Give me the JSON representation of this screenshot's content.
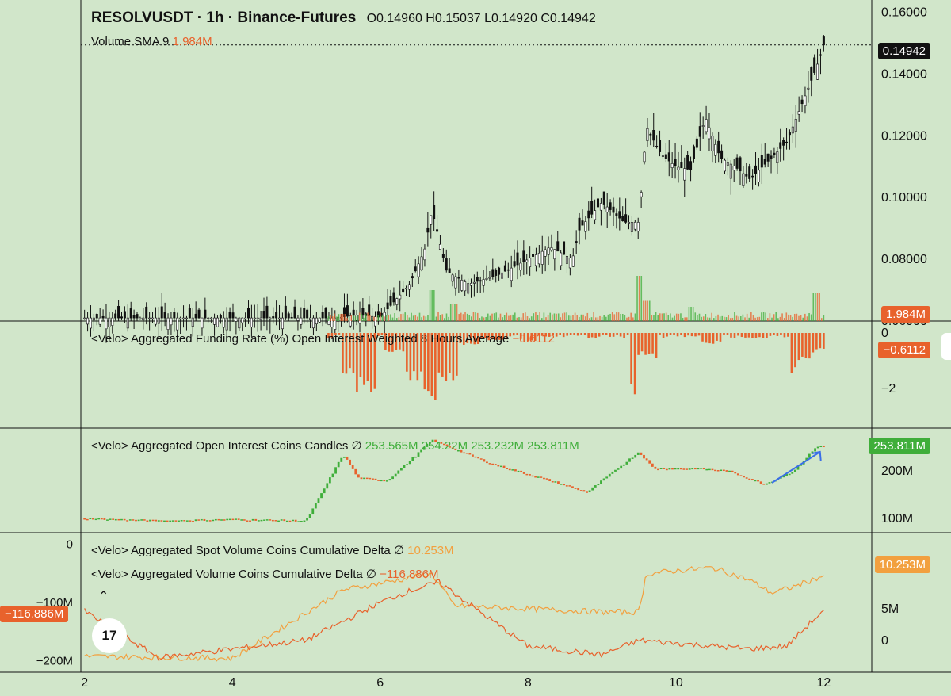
{
  "header": {
    "symbol": "RESOLVUSDT · 1h · Binance-Futures",
    "ohlc": "O0.14960  H0.15037  L0.14920  C0.14942"
  },
  "volume": {
    "label": "Volume SMA 9",
    "value": "1.984M"
  },
  "funding": {
    "label": "<Velo> Aggregated Funding Rate (%) Open Interest Weighted 8 Hours Average",
    "value": "−0.6112"
  },
  "oi": {
    "label": "<Velo> Aggregated Open Interest Coins Candles ∅",
    "o": "253.565M",
    "h": "254.22M",
    "l": "253.232M",
    "c": "253.811M"
  },
  "spot_delta": {
    "label": "<Velo> Aggregated Spot Volume Coins Cumulative Delta ∅",
    "value": "10.253M"
  },
  "vol_delta": {
    "label": "<Velo> Aggregated Volume Coins Cumulative Delta ∅",
    "value": "−116.886M"
  },
  "tags": {
    "price": "0.14942",
    "volume": "1.984M",
    "funding": "−0.6112",
    "oi": "253.811M",
    "spot": "10.253M",
    "cum": "−116.886M"
  },
  "price_axis_ticks": [
    "0.16000",
    "0.14000",
    "0.12000",
    "0.10000",
    "0.08000",
    "0.06000"
  ],
  "funding_axis_ticks": [
    "0",
    "−2"
  ],
  "oi_axis_ticks": [
    "200M",
    "100M"
  ],
  "spot_axis_ticks": [
    "5M",
    "0"
  ],
  "cum_axis_ticks": [
    "0",
    "−100M",
    "−200M"
  ],
  "x_axis_ticks": [
    "2",
    "4",
    "6",
    "8",
    "10",
    "12"
  ],
  "logo": "17",
  "colors": {
    "bg": "#d1e6ca",
    "up": "#3fae3a",
    "down": "#e8622c",
    "spot": "#f2a03f",
    "cum": "#e8622c",
    "arrow": "#3a6ee8"
  },
  "chart_data": [
    {
      "type": "candlestick",
      "title": "RESOLVUSDT · 1h · Binance-Futures",
      "x": [
        2.0,
        5.4,
        5.7,
        6.0,
        6.4,
        6.6,
        6.7,
        6.9,
        7.2,
        7.6,
        8.0,
        8.3,
        8.6,
        8.7,
        9.0,
        9.3,
        9.5,
        9.6,
        9.8,
        10.0,
        10.2,
        10.4,
        10.6,
        10.8,
        11.0,
        11.3,
        11.5,
        11.7,
        11.9,
        12.0
      ],
      "close": [
        0.061,
        0.061,
        0.062,
        0.0612,
        0.072,
        0.083,
        0.096,
        0.076,
        0.072,
        0.075,
        0.08,
        0.084,
        0.08,
        0.09,
        0.0985,
        0.092,
        0.092,
        0.123,
        0.114,
        0.11,
        0.109,
        0.126,
        0.113,
        0.11,
        0.106,
        0.113,
        0.118,
        0.13,
        0.142,
        0.1494
      ],
      "xlim": [
        1.95,
        12.65
      ],
      "ylim": [
        0.06,
        0.164
      ]
    },
    {
      "type": "bar",
      "title": "Volume SMA 9",
      "x": [
        5.5,
        6.7,
        7.0,
        9.5,
        9.6,
        10.2,
        11.9
      ],
      "values": [
        0.6,
        2.6,
        1.4,
        3.8,
        1.7,
        1.2,
        2.4
      ],
      "unit": "M"
    },
    {
      "type": "bar",
      "title": "<Velo> Aggregated Funding Rate (%) Open Interest Weighted 8 Hours Average",
      "x": [
        5.6,
        5.8,
        6.2,
        6.5,
        6.7,
        6.9,
        7.2,
        7.6,
        8.0,
        9.5,
        9.6,
        10.5,
        11.0,
        11.7,
        11.8,
        12.0
      ],
      "values": [
        -1.8,
        -2.2,
        -0.8,
        -1.7,
        -2.8,
        -1.9,
        -0.5,
        -0.3,
        -0.3,
        -2.5,
        -0.9,
        -0.4,
        -0.2,
        -1.5,
        -1.0,
        -0.6112
      ],
      "ylim": [
        -3.0,
        0.0
      ]
    },
    {
      "type": "candlestick",
      "title": "<Velo> Aggregated Open Interest Coins Candles",
      "x": [
        2.0,
        3.0,
        4.0,
        5.0,
        5.5,
        5.7,
        6.1,
        6.5,
        6.7,
        7.5,
        8.4,
        8.8,
        9.5,
        9.7,
        10.3,
        10.7,
        11.2,
        11.6,
        11.9,
        12.0
      ],
      "close": [
        100,
        95,
        98,
        95,
        235,
        185,
        180,
        235,
        265,
        215,
        175,
        155,
        240,
        205,
        205,
        200,
        172,
        200,
        250,
        253.811
      ],
      "unit": "M",
      "ylim": [
        70,
        290
      ]
    },
    {
      "type": "line",
      "title": "<Velo> Aggregated Spot Volume Coins Cumulative Delta",
      "x": [
        2.0,
        4.0,
        5.5,
        6.7,
        7.0,
        8.0,
        9.0,
        9.5,
        9.6,
        10.0,
        10.5,
        11.0,
        11.3,
        11.6,
        12.0
      ],
      "values": [
        -2.5,
        -2.8,
        8.0,
        10.5,
        5.5,
        5.0,
        4.5,
        4.5,
        10.5,
        11.0,
        11.5,
        9.5,
        7.5,
        8.5,
        10.253
      ],
      "unit": "M",
      "ylim": [
        -5,
        17
      ]
    },
    {
      "type": "line",
      "title": "<Velo> Aggregated Volume Coins Cumulative Delta",
      "x": [
        2.0,
        3.0,
        4.0,
        5.0,
        6.0,
        6.4,
        6.8,
        7.5,
        8.0,
        9.0,
        9.5,
        10.0,
        11.0,
        11.5,
        11.9,
        12.0
      ],
      "values": [
        -115,
        -195,
        -180,
        -165,
        -100,
        -80,
        -65,
        -130,
        -175,
        -190,
        -165,
        -170,
        -180,
        -175,
        -125,
        -116.886
      ],
      "unit": "M",
      "ylim": [
        -220,
        20
      ]
    }
  ]
}
